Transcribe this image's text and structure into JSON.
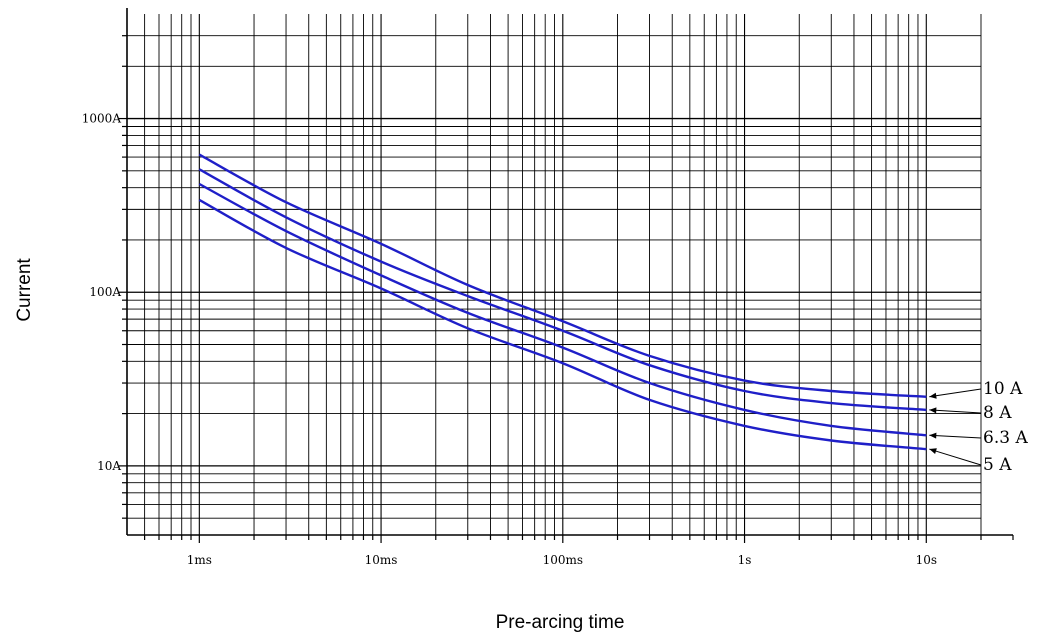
{
  "chart_data": {
    "type": "line",
    "title": "",
    "xlabel": "Pre-arcing time",
    "ylabel": "Current",
    "x_scale": "log",
    "y_scale": "log",
    "xlim": [
      "0.4ms",
      "30s"
    ],
    "ylim": [
      "4A",
      "4000A"
    ],
    "grid": true,
    "x_ticks": [
      {
        "value": 0.001,
        "label": "1ms"
      },
      {
        "value": 0.01,
        "label": "10ms"
      },
      {
        "value": 0.1,
        "label": "100ms"
      },
      {
        "value": 1,
        "label": "1s"
      },
      {
        "value": 10,
        "label": "10s"
      }
    ],
    "y_ticks": [
      {
        "value": 10,
        "label": "10A"
      },
      {
        "value": 100,
        "label": "100A"
      },
      {
        "value": 1000,
        "label": "1000A"
      }
    ],
    "series_color": "#1f1fc8",
    "series": [
      {
        "name": "10 A",
        "x": [
          0.001,
          0.003,
          0.01,
          0.03,
          0.1,
          0.3,
          1,
          3,
          10
        ],
        "y": [
          620,
          330,
          190,
          110,
          68,
          43,
          31,
          27,
          25
        ]
      },
      {
        "name": "8 A",
        "x": [
          0.001,
          0.003,
          0.01,
          0.03,
          0.1,
          0.3,
          1,
          3,
          10
        ],
        "y": [
          510,
          270,
          150,
          95,
          60,
          38,
          27,
          23,
          21
        ]
      },
      {
        "name": "6.3 A",
        "x": [
          0.001,
          0.003,
          0.01,
          0.03,
          0.1,
          0.3,
          1,
          3,
          10
        ],
        "y": [
          420,
          225,
          125,
          76,
          48,
          30,
          21,
          17,
          15
        ]
      },
      {
        "name": "5 A",
        "x": [
          0.001,
          0.003,
          0.01,
          0.03,
          0.1,
          0.3,
          1,
          3,
          10
        ],
        "y": [
          340,
          180,
          105,
          62,
          39,
          24,
          17,
          14,
          12.5
        ]
      }
    ]
  }
}
